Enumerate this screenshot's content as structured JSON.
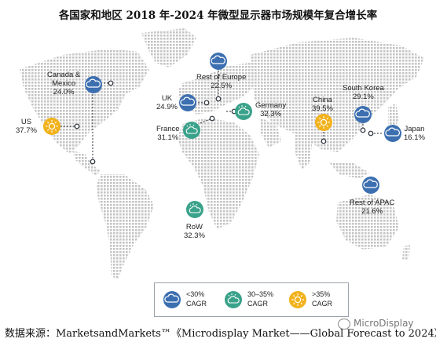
{
  "title": "各国家和地区 2018 年-2024 年微型显示器市场规模年复合增长率",
  "regions": [
    {
      "name": "Canada &\nMexico",
      "cagr": "24.0%",
      "band": "low"
    },
    {
      "name": "US",
      "cagr": "37.7%",
      "band": "high"
    },
    {
      "name": "UK",
      "cagr": "24.9%",
      "band": "low"
    },
    {
      "name": "Rest of Europe",
      "cagr": "22.5%",
      "band": "low"
    },
    {
      "name": "Germany",
      "cagr": "32.3%",
      "band": "mid"
    },
    {
      "name": "France",
      "cagr": "31.1%",
      "band": "mid"
    },
    {
      "name": "China",
      "cagr": "39.5%",
      "band": "high"
    },
    {
      "name": "South Korea",
      "cagr": "29.1%",
      "band": "low"
    },
    {
      "name": "Japan",
      "cagr": "16.1%",
      "band": "low"
    },
    {
      "name": "Rest of APAC",
      "cagr": "21.6%",
      "band": "low"
    },
    {
      "name": "RoW",
      "cagr": "32.3%",
      "band": "mid"
    }
  ],
  "legend": [
    {
      "label": "<30%\nCAGR",
      "icon": "cloud-icon",
      "color": "#3c6fb0"
    },
    {
      "label": "30–35%\nCAGR",
      "icon": "sun-cloud-icon",
      "color": "#3aa28a"
    },
    {
      "label": ">35%\nCAGR",
      "icon": "sun-icon",
      "color": "#f2b21c"
    }
  ],
  "colors": {
    "low": "#3c6fb0",
    "mid": "#3aa28a",
    "high": "#f2b21c",
    "land": "#c9c9c9"
  },
  "source": "数据来源：MarketsandMarkets™《Microdisplay Market——Global Forecast to 2024》",
  "watermark": "MicroDisplay"
}
